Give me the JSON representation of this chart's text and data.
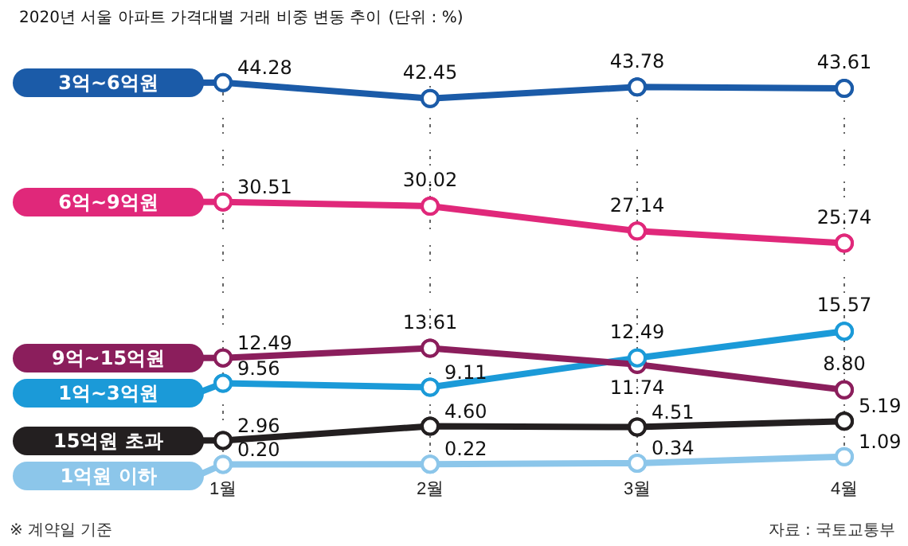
{
  "chart_data": {
    "type": "line",
    "title": "2020년 서울 아파트 가격대별 거래 비중 변동 추이",
    "subtitle": "(단위 : %)",
    "categories": [
      "1월",
      "2월",
      "3월",
      "4월"
    ],
    "series": [
      {
        "name": "3억~6억원",
        "color": "#1b5ba8",
        "values": [
          44.28,
          42.45,
          43.78,
          43.61
        ],
        "value_labels": [
          "44.28",
          "42.45",
          "43.78",
          "43.61"
        ]
      },
      {
        "name": "6억~9억원",
        "color": "#e0287a",
        "values": [
          30.51,
          30.02,
          27.14,
          25.74
        ],
        "value_labels": [
          "30.51",
          "30.02",
          "27.14",
          "25.74"
        ]
      },
      {
        "name": "9억~15억원",
        "color": "#8b1e5c",
        "values": [
          12.49,
          13.61,
          11.74,
          8.8
        ],
        "value_labels": [
          "12.49",
          "13.61",
          "11.74",
          "8.80"
        ]
      },
      {
        "name": "1억~3억원",
        "color": "#1b9ad8",
        "values": [
          9.56,
          9.11,
          12.49,
          15.57
        ],
        "value_labels": [
          "9.56",
          "9.11",
          "12.49",
          "15.57"
        ]
      },
      {
        "name": "15억원 초과",
        "color": "#231f20",
        "values": [
          2.96,
          4.6,
          4.51,
          5.19
        ],
        "value_labels": [
          "2.96",
          "4.60",
          "4.51",
          "5.19"
        ]
      },
      {
        "name": "1억원 이하",
        "color": "#8cc6ea",
        "values": [
          0.2,
          0.22,
          0.34,
          1.09
        ],
        "value_labels": [
          "0.20",
          "0.22",
          "0.34",
          "1.09"
        ]
      }
    ],
    "grid": "x",
    "legend": "left",
    "marker": "circle",
    "tick_labels": "x",
    "annotations": [
      "※ 계약일 기준",
      "자료 : 국토교통부"
    ]
  }
}
